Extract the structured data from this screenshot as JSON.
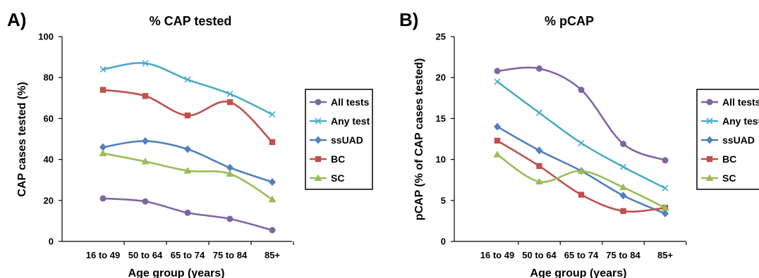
{
  "chart_data": [
    {
      "type": "line",
      "panel_label": "A)",
      "title": "% CAP tested",
      "xlabel": "Age group (years)",
      "ylabel": "CAP cases tested (%)",
      "categories": [
        "16 to 49",
        "50 to 64",
        "65 to 74",
        "75 to 84",
        "85+"
      ],
      "ylim": [
        0,
        100
      ],
      "yticks": [
        0,
        20,
        40,
        60,
        80,
        100
      ],
      "grid": false,
      "legend_position": "right",
      "series": [
        {
          "name": "All tests",
          "values": [
            21,
            19.5,
            14,
            11,
            5.5
          ],
          "color": "#8064a2",
          "marker": "circle"
        },
        {
          "name": "Any test",
          "values": [
            84,
            87,
            79,
            72,
            62
          ],
          "color": "#4bacc6",
          "marker": "x"
        },
        {
          "name": "ssUAD",
          "values": [
            46,
            49,
            45,
            36,
            29
          ],
          "color": "#4f81bd",
          "marker": "diamond"
        },
        {
          "name": "BC",
          "values": [
            74,
            71,
            61.5,
            68,
            48.5
          ],
          "color": "#c0504d",
          "marker": "square"
        },
        {
          "name": "SC",
          "values": [
            43,
            39,
            34.5,
            33,
            20.5
          ],
          "color": "#9bbb59",
          "marker": "triangle"
        }
      ]
    },
    {
      "type": "line",
      "panel_label": "B)",
      "title": "% pCAP",
      "xlabel": "Age group (years)",
      "ylabel": "pCAP (% of CAP cases tested)",
      "categories": [
        "16 to 49",
        "50 to 64",
        "65 to 74",
        "75 to 84",
        "85+"
      ],
      "ylim": [
        0,
        25
      ],
      "yticks": [
        0,
        5,
        10,
        15,
        20,
        25
      ],
      "grid": false,
      "legend_position": "right",
      "series": [
        {
          "name": "All tests",
          "values": [
            20.8,
            21.1,
            18.5,
            11.9,
            9.9
          ],
          "color": "#8064a2",
          "marker": "circle"
        },
        {
          "name": "Any test",
          "values": [
            19.5,
            15.7,
            12,
            9.1,
            6.5
          ],
          "color": "#4bacc6",
          "marker": "x"
        },
        {
          "name": "ssUAD",
          "values": [
            14,
            11.1,
            8.6,
            5.6,
            3.4
          ],
          "color": "#4f81bd",
          "marker": "diamond"
        },
        {
          "name": "BC",
          "values": [
            12.3,
            9.2,
            5.7,
            3.7,
            4.1
          ],
          "color": "#c0504d",
          "marker": "square"
        },
        {
          "name": "SC",
          "values": [
            10.6,
            7.3,
            8.6,
            6.6,
            4.1
          ],
          "color": "#9bbb59",
          "marker": "triangle"
        }
      ]
    }
  ]
}
